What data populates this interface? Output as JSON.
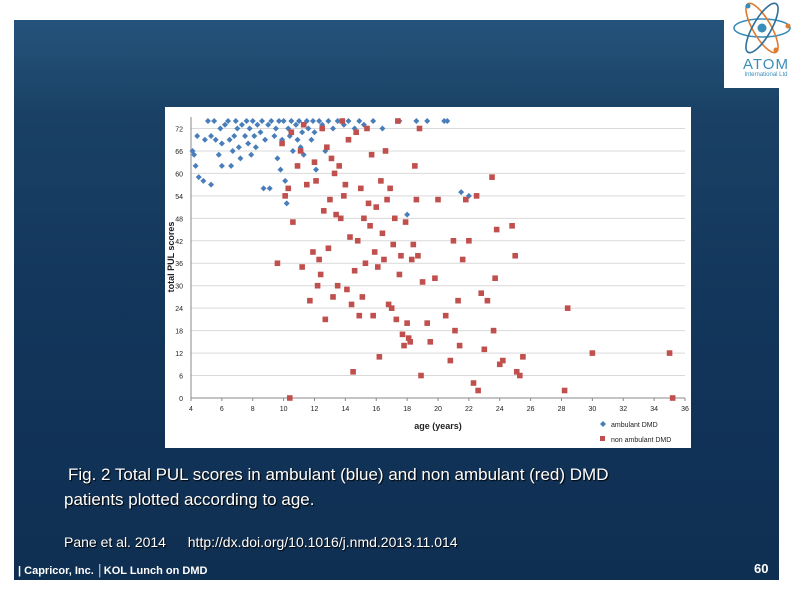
{
  "footer": {
    "text": "| Capricor, Inc. │KOL Lunch on DMD",
    "page_number": "60"
  },
  "logo": {
    "name": "ATOM",
    "subtitle": "International Ltd"
  },
  "caption": {
    "line1": "Fig. 2 Total PUL scores in ambulant (blue) and non ambulant (red) DMD",
    "line2": "patients plotted according to age."
  },
  "citation": {
    "authors": "Pane  et al. 2014",
    "doi": "http://dx.doi.org/10.1016/j.nmd.2013.11.014"
  },
  "colors": {
    "ambulant": "#4a7ebb",
    "non_ambulant": "#c0504d",
    "slide_bg": "#163c62"
  },
  "chart_data": {
    "type": "scatter",
    "title": "",
    "xlabel": "age (years)",
    "ylabel": "total PUL scores",
    "xlim": [
      4,
      36
    ],
    "ylim": [
      0,
      74
    ],
    "xticks": [
      "4",
      "6",
      "8",
      "10",
      "12",
      "14",
      "16",
      "18",
      "20",
      "22",
      "24",
      "26",
      "28",
      "30",
      "32",
      "34",
      "36"
    ],
    "yticks": [
      "0",
      "6",
      "12",
      "18",
      "24",
      "30",
      "36",
      "42",
      "48",
      "54",
      "60",
      "66",
      "72"
    ],
    "grid": "horizontal",
    "legend_position": "bottom-right",
    "series": [
      {
        "name": "ambulant DMD",
        "marker": "diamond",
        "color": "#4a7ebb",
        "points": [
          [
            4.1,
            66
          ],
          [
            4.2,
            65
          ],
          [
            4.3,
            62
          ],
          [
            4.4,
            70
          ],
          [
            4.5,
            59
          ],
          [
            4.8,
            58
          ],
          [
            4.9,
            69
          ],
          [
            5.1,
            74
          ],
          [
            5.3,
            70
          ],
          [
            5.3,
            57
          ],
          [
            5.5,
            74
          ],
          [
            5.6,
            69
          ],
          [
            5.8,
            65
          ],
          [
            5.9,
            72
          ],
          [
            6.0,
            68
          ],
          [
            6.0,
            62
          ],
          [
            6.2,
            73
          ],
          [
            6.4,
            74
          ],
          [
            6.5,
            69
          ],
          [
            6.6,
            62
          ],
          [
            6.7,
            66
          ],
          [
            6.8,
            70
          ],
          [
            6.9,
            74
          ],
          [
            7.0,
            72
          ],
          [
            7.1,
            67
          ],
          [
            7.2,
            64
          ],
          [
            7.3,
            73
          ],
          [
            7.5,
            70
          ],
          [
            7.6,
            74
          ],
          [
            7.7,
            68
          ],
          [
            7.8,
            72
          ],
          [
            7.9,
            65
          ],
          [
            8.0,
            74
          ],
          [
            8.1,
            70
          ],
          [
            8.2,
            67
          ],
          [
            8.3,
            73
          ],
          [
            8.5,
            71
          ],
          [
            8.6,
            74
          ],
          [
            8.7,
            56
          ],
          [
            8.8,
            69
          ],
          [
            9.0,
            73
          ],
          [
            9.1,
            56
          ],
          [
            9.2,
            74
          ],
          [
            9.4,
            70
          ],
          [
            9.5,
            72
          ],
          [
            9.6,
            64
          ],
          [
            9.7,
            74
          ],
          [
            9.8,
            61
          ],
          [
            9.9,
            69
          ],
          [
            10.0,
            74
          ],
          [
            10.1,
            58
          ],
          [
            10.2,
            52
          ],
          [
            10.3,
            72
          ],
          [
            10.4,
            70
          ],
          [
            10.5,
            74
          ],
          [
            10.6,
            66
          ],
          [
            10.8,
            73
          ],
          [
            10.9,
            69
          ],
          [
            11.0,
            74
          ],
          [
            11.1,
            67
          ],
          [
            11.2,
            71
          ],
          [
            11.3,
            65
          ],
          [
            11.5,
            74
          ],
          [
            11.6,
            72
          ],
          [
            11.8,
            69
          ],
          [
            11.9,
            74
          ],
          [
            12.0,
            71
          ],
          [
            12.1,
            61
          ],
          [
            12.3,
            74
          ],
          [
            12.5,
            73
          ],
          [
            12.7,
            66
          ],
          [
            12.9,
            74
          ],
          [
            13.2,
            72
          ],
          [
            13.5,
            74
          ],
          [
            13.9,
            73
          ],
          [
            14.2,
            74
          ],
          [
            14.6,
            72
          ],
          [
            14.9,
            74
          ],
          [
            15.2,
            73
          ],
          [
            15.8,
            74
          ],
          [
            16.4,
            72
          ],
          [
            17.5,
            74
          ],
          [
            18.0,
            49
          ],
          [
            18.6,
            74
          ],
          [
            19.3,
            74
          ],
          [
            20.4,
            74
          ],
          [
            20.6,
            74
          ],
          [
            21.5,
            55
          ],
          [
            22.0,
            54
          ]
        ]
      },
      {
        "name": "non ambulant DMD",
        "marker": "square",
        "color": "#c0504d",
        "points": [
          [
            9.6,
            36
          ],
          [
            9.9,
            68
          ],
          [
            10.1,
            54
          ],
          [
            10.3,
            56
          ],
          [
            10.4,
            0
          ],
          [
            10.5,
            71
          ],
          [
            10.6,
            47
          ],
          [
            10.9,
            62
          ],
          [
            11.1,
            66
          ],
          [
            11.2,
            35
          ],
          [
            11.3,
            73
          ],
          [
            11.5,
            57
          ],
          [
            11.7,
            26
          ],
          [
            11.9,
            39
          ],
          [
            12.0,
            63
          ],
          [
            12.1,
            58
          ],
          [
            12.2,
            30
          ],
          [
            12.3,
            37
          ],
          [
            12.4,
            33
          ],
          [
            12.5,
            72
          ],
          [
            12.6,
            50
          ],
          [
            12.7,
            21
          ],
          [
            12.8,
            67
          ],
          [
            12.9,
            40
          ],
          [
            13.0,
            53
          ],
          [
            13.1,
            64
          ],
          [
            13.2,
            27
          ],
          [
            13.3,
            60
          ],
          [
            13.4,
            49
          ],
          [
            13.5,
            30
          ],
          [
            13.6,
            62
          ],
          [
            13.7,
            48
          ],
          [
            13.8,
            74
          ],
          [
            13.9,
            54
          ],
          [
            14.0,
            57
          ],
          [
            14.1,
            29
          ],
          [
            14.2,
            69
          ],
          [
            14.3,
            43
          ],
          [
            14.4,
            25
          ],
          [
            14.5,
            7
          ],
          [
            14.6,
            34
          ],
          [
            14.7,
            71
          ],
          [
            14.8,
            42
          ],
          [
            14.9,
            22
          ],
          [
            15.0,
            56
          ],
          [
            15.1,
            27
          ],
          [
            15.2,
            48
          ],
          [
            15.3,
            36
          ],
          [
            15.4,
            72
          ],
          [
            15.5,
            52
          ],
          [
            15.6,
            46
          ],
          [
            15.7,
            65
          ],
          [
            15.8,
            22
          ],
          [
            15.9,
            39
          ],
          [
            16.0,
            51
          ],
          [
            16.1,
            35
          ],
          [
            16.2,
            11
          ],
          [
            16.3,
            58
          ],
          [
            16.4,
            44
          ],
          [
            16.5,
            37
          ],
          [
            16.6,
            66
          ],
          [
            16.7,
            53
          ],
          [
            16.8,
            25
          ],
          [
            16.9,
            56
          ],
          [
            17.0,
            24
          ],
          [
            17.1,
            41
          ],
          [
            17.2,
            48
          ],
          [
            17.3,
            21
          ],
          [
            17.4,
            74
          ],
          [
            17.5,
            33
          ],
          [
            17.6,
            38
          ],
          [
            17.7,
            17
          ],
          [
            17.8,
            14
          ],
          [
            17.9,
            47
          ],
          [
            18.0,
            20
          ],
          [
            18.1,
            16
          ],
          [
            18.2,
            15
          ],
          [
            18.3,
            37
          ],
          [
            18.4,
            41
          ],
          [
            18.5,
            62
          ],
          [
            18.6,
            53
          ],
          [
            18.7,
            38
          ],
          [
            18.8,
            72
          ],
          [
            18.9,
            6
          ],
          [
            19.0,
            31
          ],
          [
            19.3,
            20
          ],
          [
            19.5,
            15
          ],
          [
            19.8,
            32
          ],
          [
            20.0,
            53
          ],
          [
            20.5,
            22
          ],
          [
            20.8,
            10
          ],
          [
            21.0,
            42
          ],
          [
            21.1,
            18
          ],
          [
            21.3,
            26
          ],
          [
            21.4,
            14
          ],
          [
            21.6,
            37
          ],
          [
            21.8,
            53
          ],
          [
            22.0,
            42
          ],
          [
            22.3,
            4
          ],
          [
            22.5,
            54
          ],
          [
            22.6,
            2
          ],
          [
            22.8,
            28
          ],
          [
            23.0,
            13
          ],
          [
            23.2,
            26
          ],
          [
            23.5,
            59
          ],
          [
            23.6,
            18
          ],
          [
            23.7,
            32
          ],
          [
            23.8,
            45
          ],
          [
            24.0,
            9
          ],
          [
            24.2,
            10
          ],
          [
            24.8,
            46
          ],
          [
            25.0,
            38
          ],
          [
            25.1,
            7
          ],
          [
            25.3,
            6
          ],
          [
            25.5,
            11
          ],
          [
            28.2,
            2
          ],
          [
            28.4,
            24
          ],
          [
            30.0,
            12
          ],
          [
            35.0,
            12
          ],
          [
            35.2,
            0
          ]
        ]
      }
    ]
  }
}
